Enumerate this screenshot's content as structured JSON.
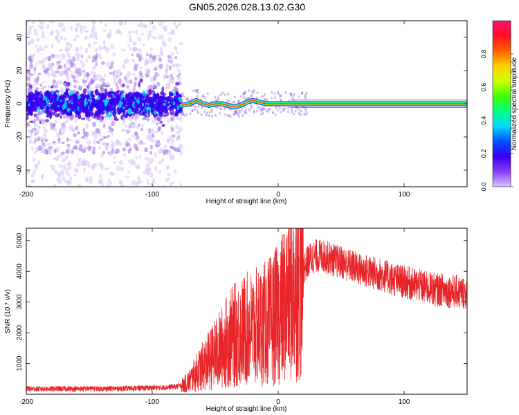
{
  "title": "GN05.2026.028.13.02.G30",
  "colors": {
    "snr_line": "#e8262a",
    "axis": "#000000",
    "scatter_weak": "#d9c4f5",
    "scatter_mid": "#a57ae8",
    "scatter_strong": "#5a10e0",
    "colormap": [
      "#d8c8ff",
      "#8a3cff",
      "#3a00f0",
      "#0050ff",
      "#00d8ff",
      "#00ff80",
      "#40ff00",
      "#d0ff00",
      "#ffd000",
      "#ff6000",
      "#ff1020",
      "#ff1070"
    ]
  },
  "chart_data": [
    {
      "type": "heatmap",
      "xlabel": "Height of straight line (km)",
      "ylabel": "Frequency (Hz)",
      "xlim": [
        -200,
        150
      ],
      "ylim": [
        -50,
        50
      ],
      "xticks": [
        -200,
        -100,
        0,
        100
      ],
      "xtick_labels": [
        "-200",
        "-100",
        "0",
        "100"
      ],
      "yticks": [
        -40,
        -20,
        0,
        20,
        40
      ],
      "ytick_labels": [
        "-40",
        "-20",
        "0",
        "20",
        "40"
      ],
      "colorbar": {
        "label": "Normalized spectral amplitude",
        "range": [
          0,
          1
        ],
        "ticks": [
          0.0,
          0.2,
          0.4,
          0.6,
          0.8
        ],
        "tick_labels": [
          "0.0",
          "0.2",
          "0.4",
          "0.6",
          "0.8"
        ]
      },
      "noise_region_x": [
        -200,
        -77
      ],
      "signal_track": {
        "x": [
          -77,
          -70,
          -65,
          -60,
          -55,
          -50,
          -45,
          -40,
          -35,
          -30,
          -25,
          -20,
          -15,
          -10,
          -5,
          0,
          5,
          10,
          150
        ],
        "y": [
          -1,
          0,
          2,
          0,
          -1,
          0,
          0,
          -1,
          -2,
          -1,
          1,
          2,
          1,
          0,
          0,
          0,
          0,
          0,
          0
        ]
      }
    },
    {
      "type": "line",
      "xlabel": "Height of straight line (km)",
      "ylabel": "SNR (10 * v/v)",
      "xlim": [
        -200,
        150
      ],
      "ylim": [
        0,
        5400
      ],
      "xticks": [
        -200,
        -100,
        0,
        100
      ],
      "xtick_labels": [
        "-200",
        "-100",
        "0",
        "100"
      ],
      "yticks": [
        1000,
        2000,
        3000,
        4000,
        5000
      ],
      "ytick_labels": [
        "1000",
        "2000",
        "3000",
        "4000",
        "5000"
      ],
      "series": [
        {
          "name": "SNR",
          "x": [
            -200,
            -190,
            -180,
            -170,
            -160,
            -150,
            -140,
            -130,
            -120,
            -110,
            -100,
            -90,
            -80,
            -75,
            -70,
            -65,
            -60,
            -55,
            -50,
            -45,
            -40,
            -35,
            -30,
            -25,
            -20,
            -15,
            -10,
            -5,
            0,
            5,
            10,
            15,
            20,
            25,
            30,
            35,
            40,
            45,
            50,
            55,
            60,
            65,
            70,
            75,
            80,
            85,
            90,
            95,
            100,
            105,
            110,
            115,
            120,
            125,
            130,
            135,
            140,
            145,
            150
          ],
          "y": [
            180,
            170,
            175,
            180,
            175,
            185,
            180,
            185,
            190,
            200,
            210,
            220,
            260,
            300,
            450,
            700,
            900,
            1100,
            1300,
            1500,
            1750,
            1900,
            2000,
            2100,
            2150,
            2200,
            2300,
            2400,
            2600,
            2900,
            3300,
            3700,
            4100,
            4400,
            4500,
            4500,
            4450,
            4350,
            4300,
            4200,
            4150,
            4050,
            4000,
            3950,
            3900,
            3850,
            3750,
            3700,
            3650,
            3600,
            3550,
            3500,
            3450,
            3400,
            3400,
            3350,
            3350,
            3300,
            3300
          ]
        }
      ]
    }
  ]
}
